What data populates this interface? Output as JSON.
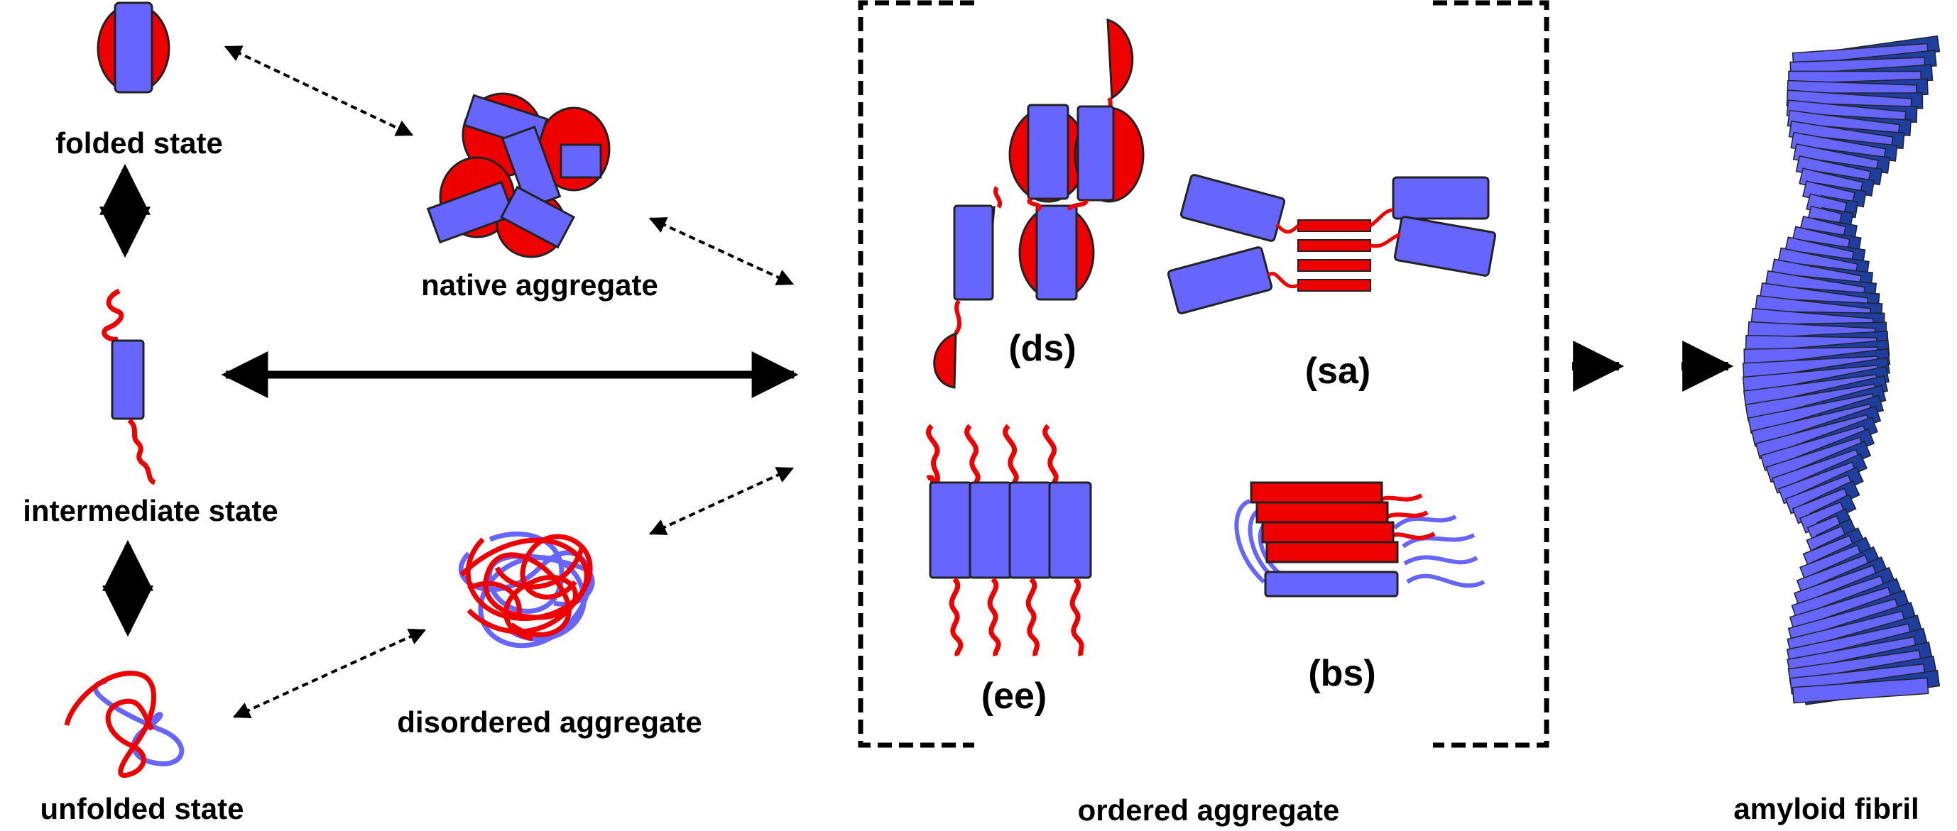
{
  "labels": {
    "folded": "folded state",
    "native": "native aggregate",
    "intermediate": "intermediate state",
    "unfolded": "unfolded state",
    "disordered": "disordered aggregate",
    "ordered": "ordered aggregate",
    "amyloid": "amyloid fibril",
    "ds": "(ds)",
    "sa": "(sa)",
    "ee": "(ee)",
    "bs": "(bs)"
  },
  "colors": {
    "blue": "#6666ff",
    "dark_blue": "#1f3fa0",
    "red": "#ee0000",
    "black": "#000000"
  }
}
